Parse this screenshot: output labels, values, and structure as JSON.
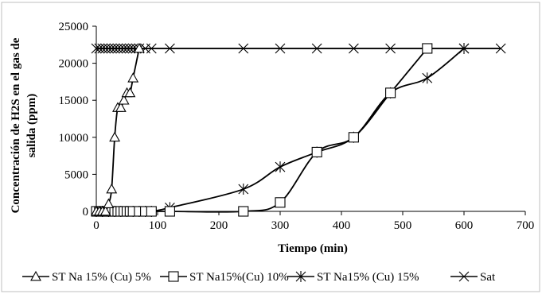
{
  "chart_data": {
    "type": "line",
    "title": "",
    "xlabel": "Tiempo (min)",
    "ylabel_lines": [
      "Concentración de H2S en el gas de",
      "salida (ppm)"
    ],
    "xlim": [
      0,
      700
    ],
    "ylim": [
      0,
      25000
    ],
    "x_ticks": [
      "0",
      "100",
      "200",
      "300",
      "400",
      "500",
      "600",
      "700"
    ],
    "y_ticks": [
      "0",
      "5000",
      "10000",
      "15000",
      "20000",
      "25000"
    ],
    "grid": false,
    "legend_position": "bottom",
    "series": [
      {
        "name": "ST Na 15% (Cu) 5%",
        "marker": "triangle",
        "color": "#000000",
        "points": [
          [
            0,
            0
          ],
          [
            5,
            0
          ],
          [
            10,
            0
          ],
          [
            15,
            0
          ],
          [
            20,
            1000
          ],
          [
            25,
            3000
          ],
          [
            30,
            10000
          ],
          [
            35,
            14000
          ],
          [
            40,
            14000
          ],
          [
            45,
            15000
          ],
          [
            50,
            16000
          ],
          [
            55,
            16000
          ],
          [
            60,
            18000
          ],
          [
            70,
            22000
          ]
        ]
      },
      {
        "name": "ST Na15%(Cu) 10%",
        "marker": "square",
        "color": "#000000",
        "points": [
          [
            0,
            0
          ],
          [
            5,
            0
          ],
          [
            10,
            0
          ],
          [
            15,
            0
          ],
          [
            20,
            0
          ],
          [
            25,
            0
          ],
          [
            30,
            0
          ],
          [
            35,
            0
          ],
          [
            40,
            0
          ],
          [
            45,
            0
          ],
          [
            50,
            0
          ],
          [
            55,
            0
          ],
          [
            60,
            0
          ],
          [
            70,
            0
          ],
          [
            80,
            0
          ],
          [
            90,
            0
          ],
          [
            120,
            0
          ],
          [
            240,
            0
          ],
          [
            300,
            1200
          ],
          [
            360,
            8000
          ],
          [
            420,
            10000
          ],
          [
            480,
            16000
          ],
          [
            540,
            22000
          ]
        ]
      },
      {
        "name": "ST Na15% (Cu) 15%",
        "marker": "asterisk",
        "color": "#000000",
        "points": [
          [
            0,
            0
          ],
          [
            10,
            0
          ],
          [
            20,
            0
          ],
          [
            30,
            0
          ],
          [
            40,
            0
          ],
          [
            50,
            0
          ],
          [
            60,
            0
          ],
          [
            70,
            0
          ],
          [
            80,
            0
          ],
          [
            90,
            0
          ],
          [
            120,
            500
          ],
          [
            240,
            3000
          ],
          [
            300,
            6000
          ],
          [
            360,
            8000
          ],
          [
            420,
            10000
          ],
          [
            480,
            16000
          ],
          [
            540,
            18000
          ],
          [
            600,
            22000
          ]
        ]
      },
      {
        "name": "Sat",
        "marker": "x",
        "color": "#000000",
        "points": [
          [
            0,
            22000
          ],
          [
            5,
            22000
          ],
          [
            10,
            22000
          ],
          [
            15,
            22000
          ],
          [
            20,
            22000
          ],
          [
            25,
            22000
          ],
          [
            30,
            22000
          ],
          [
            35,
            22000
          ],
          [
            40,
            22000
          ],
          [
            45,
            22000
          ],
          [
            50,
            22000
          ],
          [
            55,
            22000
          ],
          [
            60,
            22000
          ],
          [
            65,
            22000
          ],
          [
            70,
            22000
          ],
          [
            80,
            22000
          ],
          [
            90,
            22000
          ],
          [
            120,
            22000
          ],
          [
            240,
            22000
          ],
          [
            300,
            22000
          ],
          [
            360,
            22000
          ],
          [
            420,
            22000
          ],
          [
            480,
            22000
          ],
          [
            540,
            22000
          ],
          [
            600,
            22000
          ],
          [
            660,
            22000
          ]
        ]
      }
    ]
  }
}
